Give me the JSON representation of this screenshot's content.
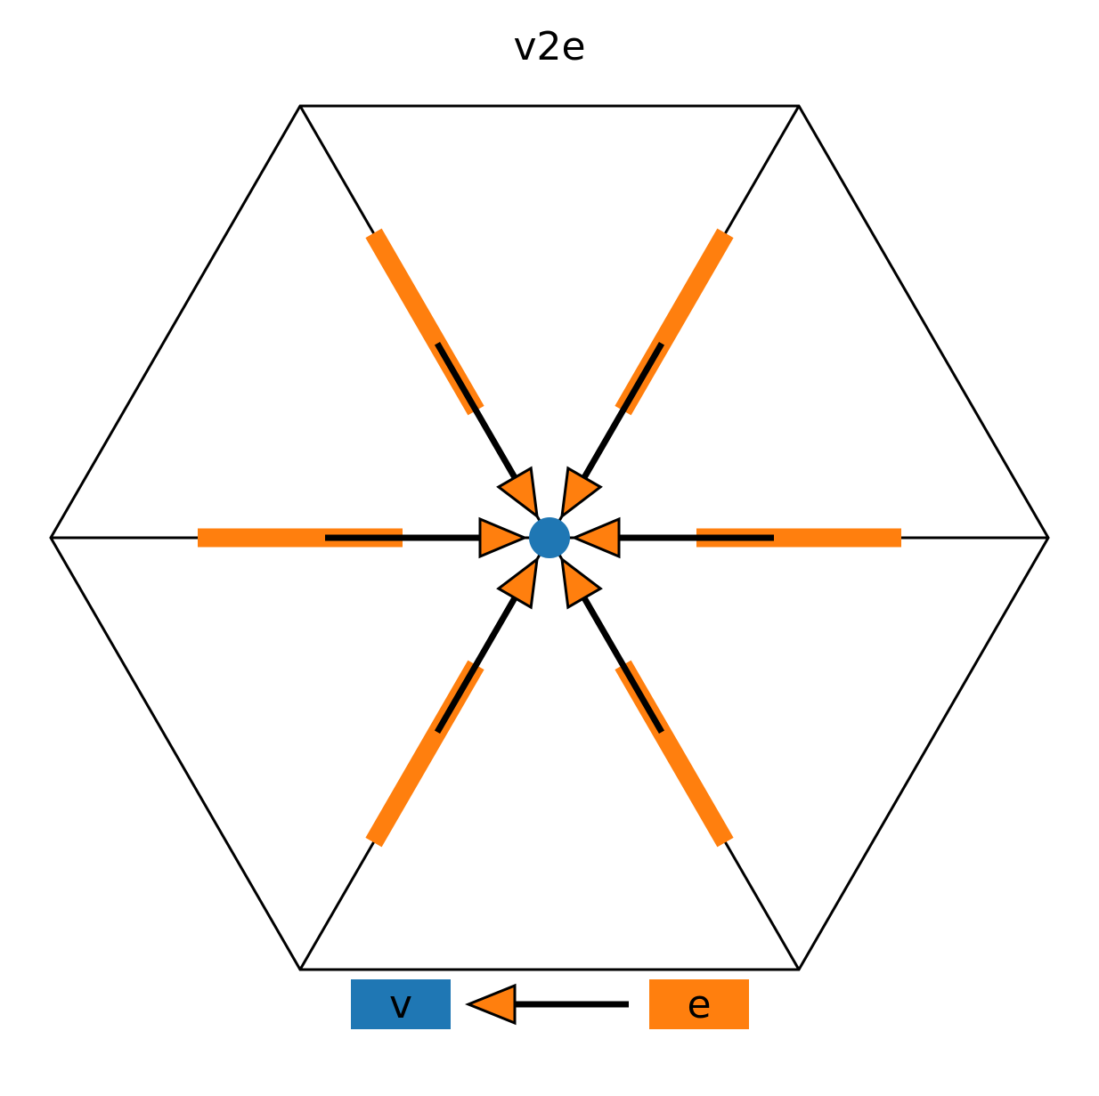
{
  "title": "v2e",
  "colors": {
    "vertex": "#1f77b4",
    "edge": "#ff7f0e",
    "line": "#000000",
    "background": "#ffffff"
  },
  "legend": {
    "source_label": "v",
    "target_label": "e"
  },
  "edges": [
    "edge-right",
    "edge-upper-right",
    "edge-upper-left",
    "edge-left",
    "edge-lower-left",
    "edge-lower-right"
  ]
}
